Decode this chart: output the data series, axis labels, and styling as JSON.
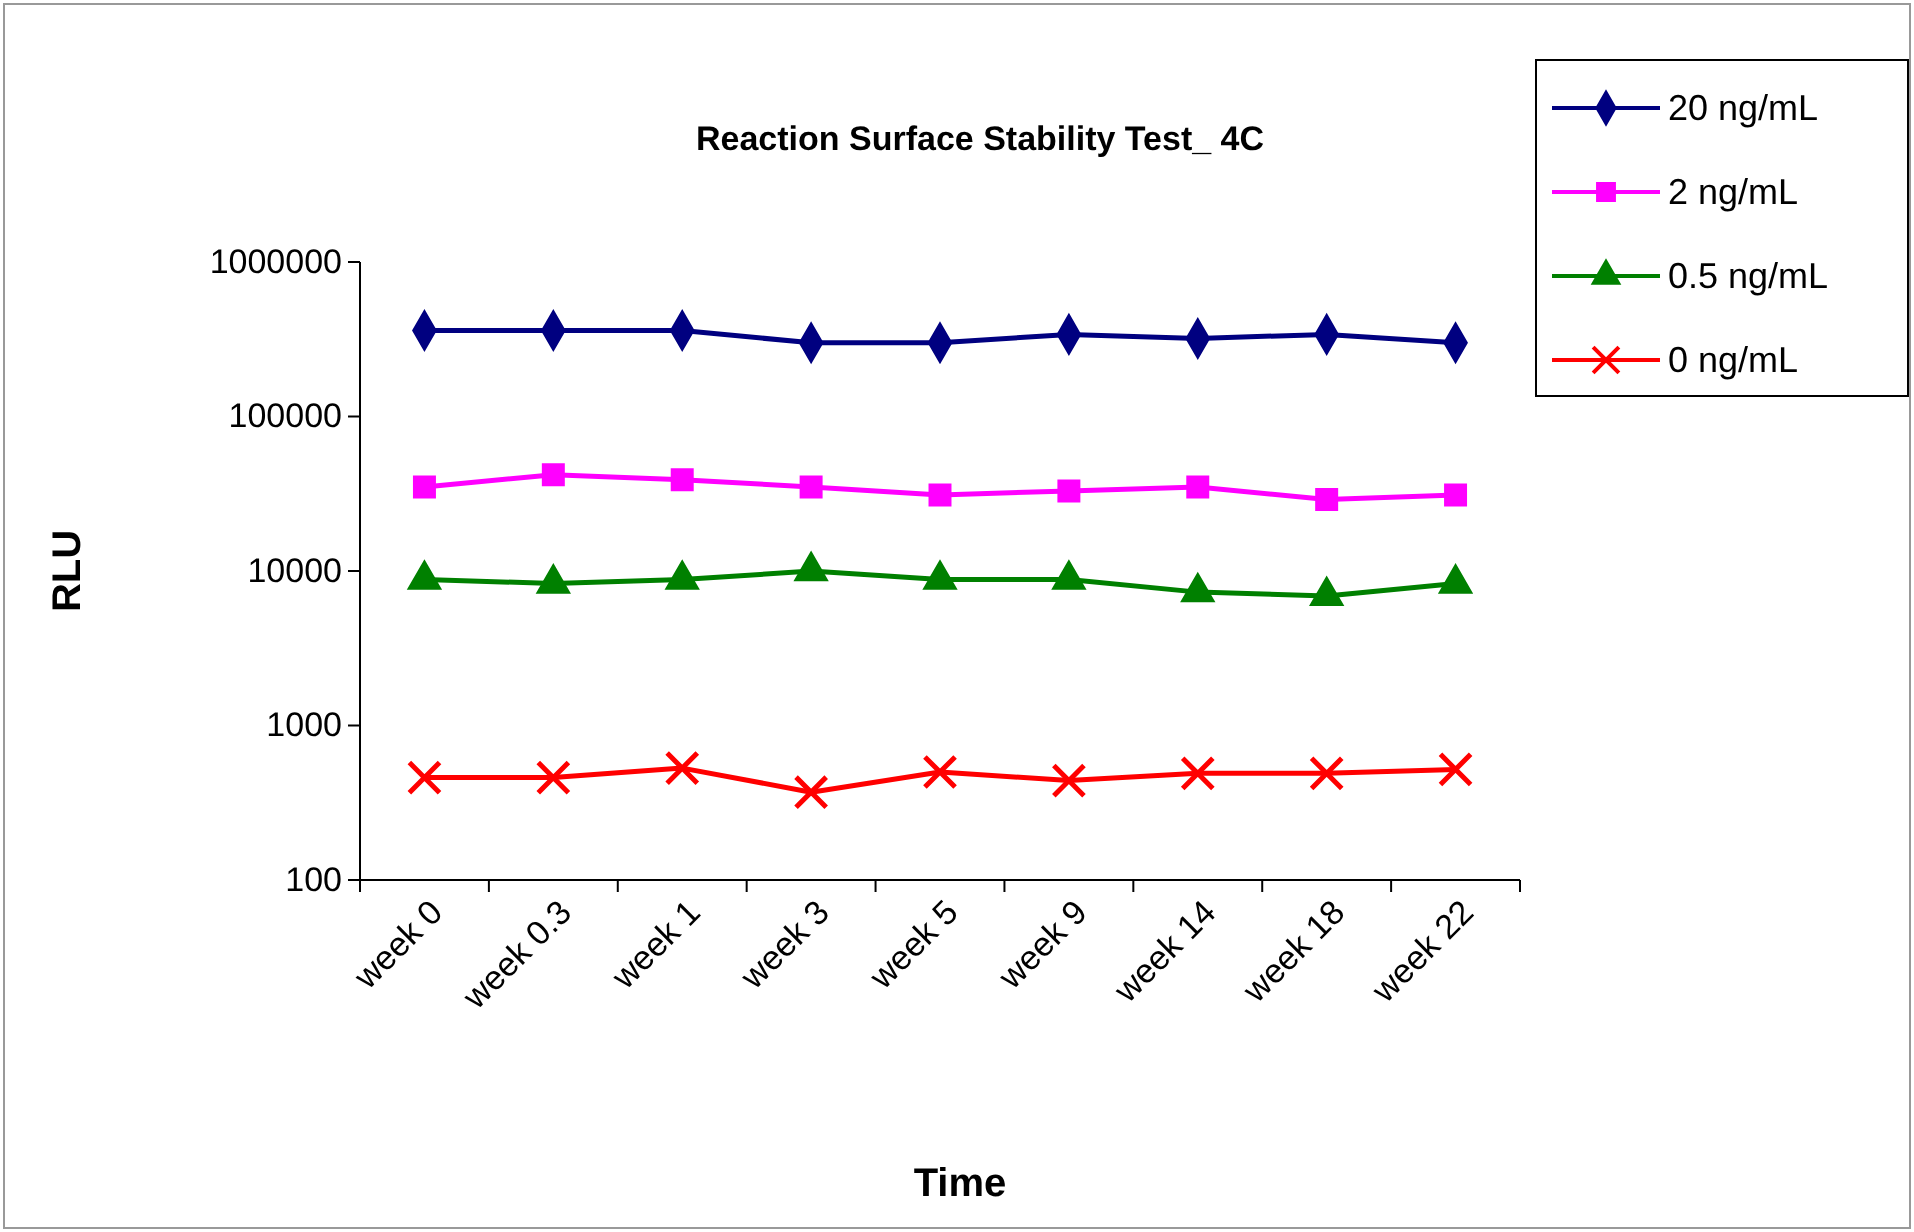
{
  "chart_data": {
    "type": "line",
    "title": "Reaction Surface Stability Test_ 4C",
    "xlabel": "Time",
    "ylabel": "RLU",
    "categories": [
      "week 0",
      "week 0.3",
      "week 1",
      "week 3",
      "week 5",
      "week 9",
      "week 14",
      "week 18",
      "week 22"
    ],
    "series": [
      {
        "name": "20 ng/mL",
        "color": "#000080",
        "marker": "diamond",
        "values": [
          360000,
          360000,
          360000,
          300000,
          300000,
          340000,
          320000,
          340000,
          300000
        ]
      },
      {
        "name": "2 ng/mL",
        "color": "#ff00ff",
        "marker": "square",
        "values": [
          35000,
          42000,
          39000,
          35000,
          31000,
          33000,
          35000,
          29000,
          31000
        ]
      },
      {
        "name": "0.5 ng/mL",
        "color": "#008000",
        "marker": "triangle",
        "values": [
          8800,
          8300,
          8800,
          10000,
          8800,
          8800,
          7300,
          6900,
          8300
        ]
      },
      {
        "name": "0 ng/mL",
        "color": "#ff0000",
        "marker": "cross",
        "values": [
          460,
          460,
          530,
          370,
          500,
          440,
          490,
          490,
          520
        ]
      }
    ],
    "log": true,
    "ylim": [
      100,
      1000000
    ],
    "yticks": [
      100,
      1000,
      10000,
      100000,
      1000000
    ],
    "grid": false,
    "legend": "top right",
    "line_style": "solid"
  }
}
